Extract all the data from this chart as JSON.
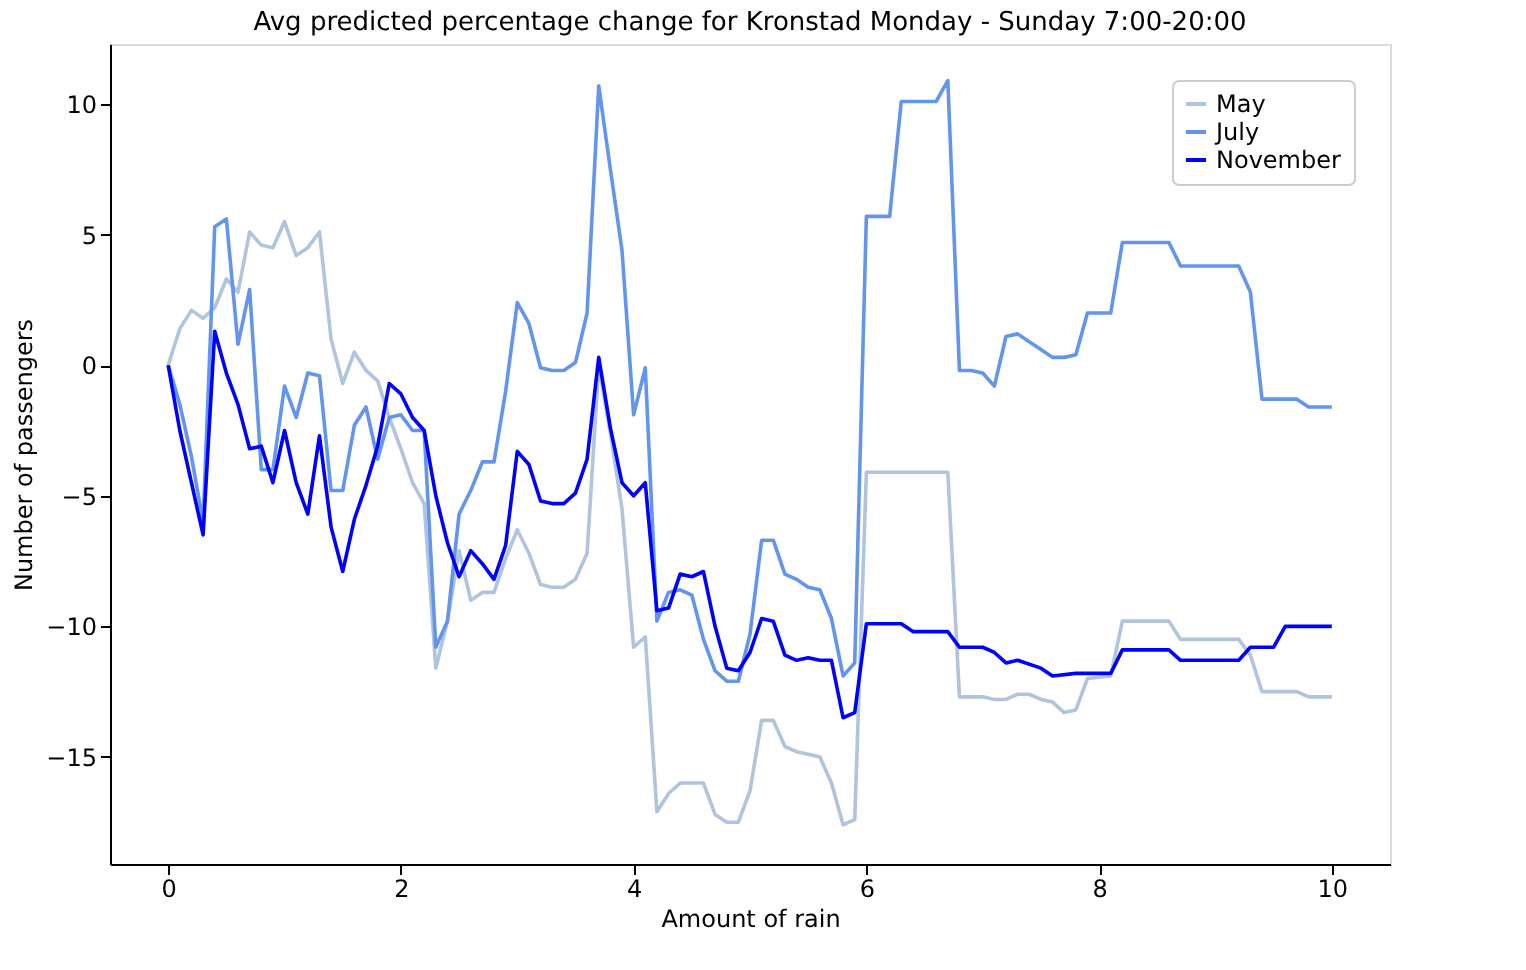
{
  "chart_data": {
    "type": "line",
    "title": "Avg predicted percentage change for Kronstad Monday - Sunday 7:00-20:00",
    "xlabel": "Amount of rain",
    "ylabel": "Number of passengers",
    "xlim": [
      -0.5,
      10.5
    ],
    "ylim": [
      -19.1,
      12.3
    ],
    "xticks": [
      0,
      2,
      4,
      6,
      8,
      10
    ],
    "yticks": [
      -15,
      -10,
      -5,
      0,
      5,
      10
    ],
    "grid": false,
    "legend": "top right",
    "line_style": "solid",
    "marker": "none",
    "series": [
      {
        "name": "May",
        "color": "#b0c4de",
        "x": [
          0,
          0.1,
          0.2,
          0.3,
          0.4,
          0.5,
          0.6,
          0.7,
          0.8,
          0.9,
          1.0,
          1.1,
          1.2,
          1.3,
          1.4,
          1.5,
          1.6,
          1.7,
          1.8,
          1.9,
          2.0,
          2.1,
          2.2,
          2.3,
          2.4,
          2.5,
          2.6,
          2.7,
          2.8,
          2.9,
          3.0,
          3.1,
          3.2,
          3.3,
          3.4,
          3.5,
          3.6,
          3.7,
          3.8,
          3.9,
          4.0,
          4.1,
          4.2,
          4.3,
          4.4,
          4.5,
          4.6,
          4.7,
          4.8,
          4.9,
          5.0,
          5.1,
          5.2,
          5.3,
          5.4,
          5.5,
          5.6,
          5.7,
          5.8,
          5.9,
          6.0,
          6.7,
          6.8,
          7.0,
          7.1,
          7.2,
          7.3,
          7.4,
          7.5,
          7.6,
          7.7,
          7.8,
          7.9,
          8.1,
          8.2,
          8.6,
          8.7,
          9.2,
          9.3,
          9.4,
          9.7,
          9.8,
          10
        ],
        "values": [
          0,
          1.4,
          2.1,
          1.8,
          2.2,
          3.3,
          2.8,
          5.1,
          4.6,
          4.5,
          5.5,
          4.2,
          4.5,
          5.1,
          1.0,
          -0.7,
          0.5,
          -0.2,
          -0.6,
          -2.0,
          -3.2,
          -4.5,
          -5.3,
          -11.6,
          -9.8,
          -7.1,
          -9.0,
          -8.7,
          -8.7,
          -7.4,
          -6.3,
          -7.2,
          -8.4,
          -8.5,
          -8.5,
          -8.2,
          -7.2,
          0.0,
          -2.6,
          -5.5,
          -10.8,
          -10.4,
          -17.1,
          -16.4,
          -16.0,
          -16.0,
          -16.0,
          -17.2,
          -17.5,
          -17.5,
          -16.3,
          -13.6,
          -13.6,
          -14.6,
          -14.8,
          -14.9,
          -15.0,
          -16.0,
          -17.6,
          -17.4,
          -4.1,
          -4.1,
          -12.7,
          -12.7,
          -12.8,
          -12.8,
          -12.6,
          -12.6,
          -12.8,
          -12.9,
          -13.3,
          -13.2,
          -12.0,
          -11.9,
          -9.8,
          -9.8,
          -10.5,
          -10.5,
          -11.1,
          -12.5,
          -12.5,
          -12.7,
          -12.7
        ]
      },
      {
        "name": "July",
        "color": "#6495ed",
        "x": [
          0,
          0.1,
          0.2,
          0.3,
          0.4,
          0.5,
          0.6,
          0.7,
          0.8,
          0.9,
          1.0,
          1.1,
          1.2,
          1.3,
          1.4,
          1.5,
          1.6,
          1.7,
          1.8,
          1.9,
          2.0,
          2.1,
          2.2,
          2.3,
          2.4,
          2.5,
          2.6,
          2.7,
          2.8,
          2.9,
          3.0,
          3.1,
          3.2,
          3.3,
          3.4,
          3.5,
          3.6,
          3.7,
          3.8,
          3.9,
          4.0,
          4.1,
          4.2,
          4.3,
          4.4,
          4.5,
          4.6,
          4.7,
          4.8,
          4.9,
          5.0,
          5.1,
          5.2,
          5.3,
          5.4,
          5.5,
          5.6,
          5.7,
          5.8,
          5.9,
          6.0,
          6.2,
          6.3,
          6.6,
          6.7,
          6.8,
          6.9,
          7.0,
          7.1,
          7.2,
          7.3,
          7.4,
          7.5,
          7.6,
          7.7,
          7.8,
          7.9,
          8.1,
          8.2,
          8.6,
          8.7,
          9.2,
          9.3,
          9.4,
          9.7,
          9.8,
          10
        ],
        "values": [
          0,
          -1.5,
          -3.5,
          -6.0,
          5.3,
          5.6,
          0.8,
          2.9,
          -4.0,
          -4.0,
          -0.8,
          -2.0,
          -0.3,
          -0.4,
          -4.8,
          -4.8,
          -2.3,
          -1.6,
          -3.6,
          -2.0,
          -1.9,
          -2.5,
          -2.5,
          -10.8,
          -9.8,
          -5.7,
          -4.8,
          -3.7,
          -3.7,
          -1.0,
          2.4,
          1.6,
          -0.1,
          -0.2,
          -0.2,
          0.1,
          2.0,
          10.7,
          7.5,
          4.4,
          -1.9,
          -0.1,
          -9.8,
          -8.7,
          -8.6,
          -8.8,
          -10.5,
          -11.7,
          -12.1,
          -12.1,
          -10.3,
          -6.7,
          -6.7,
          -8.0,
          -8.2,
          -8.5,
          -8.6,
          -9.7,
          -11.9,
          -11.4,
          5.7,
          5.7,
          10.1,
          10.1,
          10.9,
          -0.2,
          -0.2,
          -0.3,
          -0.8,
          1.1,
          1.2,
          0.9,
          0.6,
          0.3,
          0.3,
          0.4,
          2.0,
          2.0,
          4.7,
          4.7,
          3.8,
          3.8,
          2.8,
          -1.3,
          -1.3,
          -1.6,
          -1.6
        ]
      },
      {
        "name": "November",
        "color": "#0000ff",
        "x": [
          0,
          0.1,
          0.2,
          0.3,
          0.4,
          0.5,
          0.6,
          0.7,
          0.8,
          0.9,
          1.0,
          1.1,
          1.2,
          1.3,
          1.4,
          1.5,
          1.6,
          1.7,
          1.8,
          1.9,
          2.0,
          2.1,
          2.2,
          2.3,
          2.4,
          2.5,
          2.6,
          2.7,
          2.8,
          2.9,
          3.0,
          3.1,
          3.2,
          3.3,
          3.4,
          3.5,
          3.6,
          3.7,
          3.8,
          3.9,
          4.0,
          4.1,
          4.2,
          4.3,
          4.4,
          4.5,
          4.6,
          4.7,
          4.8,
          4.9,
          5.0,
          5.1,
          5.2,
          5.3,
          5.4,
          5.5,
          5.6,
          5.7,
          5.8,
          5.9,
          6.0,
          6.3,
          6.4,
          6.7,
          6.8,
          7.0,
          7.1,
          7.2,
          7.3,
          7.5,
          7.6,
          7.8,
          8.1,
          8.2,
          8.6,
          8.7,
          9.2,
          9.3,
          9.5,
          9.6,
          10
        ],
        "values": [
          0,
          -2.5,
          -4.5,
          -6.5,
          1.3,
          -0.3,
          -1.5,
          -3.2,
          -3.1,
          -4.5,
          -2.5,
          -4.5,
          -5.7,
          -2.7,
          -6.2,
          -7.9,
          -5.9,
          -4.6,
          -3.1,
          -0.7,
          -1.1,
          -2.0,
          -2.5,
          -5.0,
          -6.8,
          -8.1,
          -7.1,
          -7.6,
          -8.2,
          -6.9,
          -3.3,
          -3.8,
          -5.2,
          -5.3,
          -5.3,
          -4.9,
          -3.6,
          0.3,
          -2.4,
          -4.5,
          -5.0,
          -4.5,
          -9.4,
          -9.3,
          -8.0,
          -8.1,
          -7.9,
          -10.0,
          -11.6,
          -11.7,
          -11.0,
          -9.7,
          -9.8,
          -11.1,
          -11.3,
          -11.2,
          -11.3,
          -11.3,
          -13.5,
          -13.3,
          -9.9,
          -9.9,
          -10.2,
          -10.2,
          -10.8,
          -10.8,
          -11.0,
          -11.4,
          -11.3,
          -11.6,
          -11.9,
          -11.8,
          -11.8,
          -10.9,
          -10.9,
          -11.3,
          -11.3,
          -10.8,
          -10.8,
          -10.0,
          -10.0
        ]
      }
    ]
  }
}
